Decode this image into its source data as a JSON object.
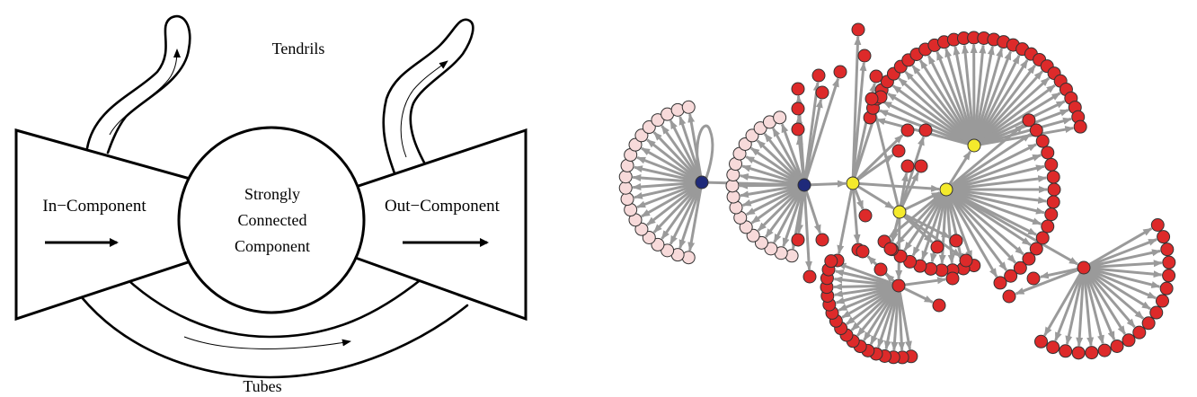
{
  "bowtie": {
    "labels": {
      "tendrils": "Tendrils",
      "in_component": "In−Component",
      "scc_line1": "Strongly",
      "scc_line2": "Connected",
      "scc_line3": "Component",
      "out_component": "Out−Component",
      "tubes": "Tubes"
    }
  },
  "network": {
    "colors": {
      "in_leaf": "#f7dada",
      "in_hub": "#1f2a7a",
      "scc_hub": "#f4ea2c",
      "out_node": "#dd2a2a",
      "edge": "#9a9a9a"
    }
  }
}
